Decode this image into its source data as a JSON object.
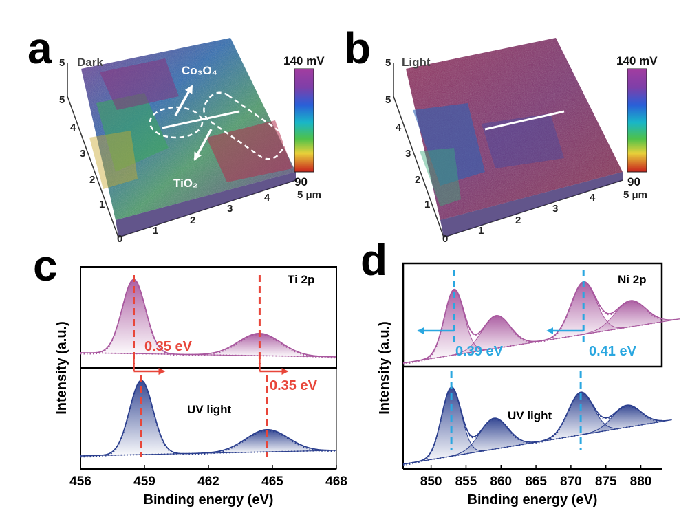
{
  "panels": {
    "a": {
      "letter": "a",
      "title": "Dark",
      "z_top": "5",
      "y_ticks": [
        "0",
        "1",
        "2",
        "3",
        "4",
        "5"
      ],
      "x_ticks": [
        "1",
        "2",
        "3",
        "4"
      ],
      "x_end": "5 μm",
      "label_top": "Co₃O₄",
      "label_bottom": "TiO₂",
      "colorbar_max": "140 mV",
      "colorbar_min": "90"
    },
    "b": {
      "letter": "b",
      "title": "Light",
      "z_top": "5",
      "y_ticks": [
        "0",
        "1",
        "2",
        "3",
        "4",
        "5"
      ],
      "x_ticks": [
        "1",
        "2",
        "3",
        "4"
      ],
      "x_end": "5 μm",
      "colorbar_max": "140 mV",
      "colorbar_min": "90"
    },
    "c": {
      "letter": "c",
      "tag_top": "Ti 2p",
      "tag_bottom": "UV light",
      "shift_1": "0.35 eV",
      "shift_2": "0.35 eV",
      "xlabel": "Binding energy (eV)",
      "ylabel": "Intensity (a.u.)"
    },
    "d": {
      "letter": "d",
      "tag_top": "Ni 2p",
      "tag_bottom": "UV light",
      "shift_1": "0.39 eV",
      "shift_2": "0.41 eV",
      "xlabel": "Binding energy (eV)",
      "ylabel": "Intensity (a.u.)"
    }
  },
  "colors": {
    "purple": "#a8579e",
    "navy": "#2b3f8e",
    "red": "#e8463a",
    "cyan": "#2aa7e0"
  },
  "chart_data": [
    {
      "type": "heatmap",
      "panel": "a",
      "title": "Dark",
      "colorbar_range": [
        90,
        140
      ],
      "colorbar_unit": "mV",
      "x_range": [
        0,
        5
      ],
      "y_range": [
        0,
        5
      ],
      "unit": "μm"
    },
    {
      "type": "heatmap",
      "panel": "b",
      "title": "Light",
      "colorbar_range": [
        90,
        140
      ],
      "colorbar_unit": "mV",
      "x_range": [
        0,
        5
      ],
      "y_range": [
        0,
        5
      ],
      "unit": "μm"
    },
    {
      "type": "line",
      "panel": "c",
      "xlabel": "Binding energy (eV)",
      "ylabel": "Intensity (a.u.)",
      "xlim": [
        456,
        468
      ],
      "xticks": [
        456,
        459,
        462,
        465,
        468
      ],
      "series": [
        {
          "name": "Ti 2p",
          "peaks": [
            {
              "center": 458.5,
              "height": 1.0,
              "width": 0.55
            },
            {
              "center": 464.4,
              "height": 0.3,
              "width": 1.0
            }
          ],
          "markers": [
            458.5,
            464.4
          ]
        },
        {
          "name": "UV light",
          "peaks": [
            {
              "center": 458.85,
              "height": 1.0,
              "width": 0.55
            },
            {
              "center": 464.75,
              "height": 0.3,
              "width": 1.0
            }
          ],
          "markers": [
            458.85,
            464.75
          ]
        }
      ],
      "annotations": [
        "0.35 eV",
        "0.35 eV"
      ]
    },
    {
      "type": "line",
      "panel": "d",
      "xlabel": "Binding energy (eV)",
      "ylabel": "Intensity (a.u.)",
      "xlim": [
        846,
        883
      ],
      "xticks": [
        850,
        855,
        860,
        865,
        870,
        875,
        880
      ],
      "series": [
        {
          "name": "Ni 2p",
          "peaks": [
            {
              "center": 853.3,
              "height": 1.0,
              "width": 1.4
            },
            {
              "center": 859.3,
              "height": 0.5,
              "width": 2.0
            },
            {
              "center": 871.8,
              "height": 0.8,
              "width": 1.8
            },
            {
              "center": 878.5,
              "height": 0.4,
              "width": 2.2
            }
          ],
          "markers": [
            853.3,
            871.8
          ]
        },
        {
          "name": "UV light",
          "peaks": [
            {
              "center": 852.9,
              "height": 1.0,
              "width": 1.4
            },
            {
              "center": 859.0,
              "height": 0.45,
              "width": 2.0
            },
            {
              "center": 871.4,
              "height": 0.62,
              "width": 1.8
            },
            {
              "center": 878.0,
              "height": 0.32,
              "width": 2.0
            }
          ],
          "markers": [
            852.9,
            871.4
          ]
        }
      ],
      "annotations": [
        "0.39 eV",
        "0.41 eV"
      ]
    }
  ]
}
